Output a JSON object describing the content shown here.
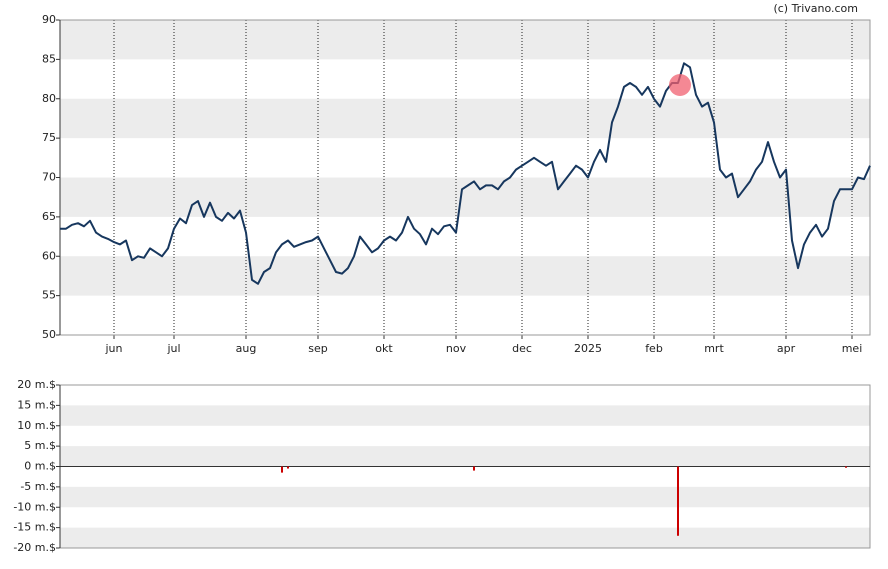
{
  "chart_data": [
    {
      "type": "line",
      "title": "(c) Trivano.com",
      "color": "#17375e",
      "categories": [
        null,
        null,
        null,
        null,
        null,
        null,
        null,
        null,
        null,
        "jun",
        null,
        null,
        null,
        null,
        null,
        null,
        null,
        null,
        null,
        "jul",
        null,
        null,
        null,
        null,
        null,
        null,
        null,
        null,
        null,
        null,
        null,
        "aug",
        null,
        null,
        null,
        null,
        null,
        null,
        null,
        null,
        null,
        null,
        null,
        "sep",
        null,
        null,
        null,
        null,
        null,
        null,
        null,
        null,
        null,
        null,
        "okt",
        null,
        null,
        null,
        null,
        null,
        null,
        null,
        null,
        null,
        null,
        null,
        "nov",
        null,
        null,
        null,
        null,
        null,
        null,
        null,
        null,
        null,
        null,
        "dec",
        null,
        null,
        null,
        null,
        null,
        null,
        null,
        null,
        null,
        null,
        "2025",
        null,
        null,
        null,
        null,
        null,
        null,
        null,
        null,
        null,
        null,
        "feb",
        null,
        null,
        null,
        null,
        null,
        null,
        null,
        null,
        null,
        "mrt",
        null,
        null,
        null,
        null,
        null,
        null,
        null,
        null,
        null,
        null,
        null,
        "apr",
        null,
        null,
        null,
        null,
        null,
        null,
        null,
        null,
        null,
        null,
        "mei",
        null,
        null,
        null
      ],
      "values": [
        63.5,
        63.5,
        64,
        64.2,
        63.8,
        64.5,
        63,
        62.5,
        62.2,
        61.8,
        61.5,
        62,
        59.5,
        60,
        59.8,
        61,
        60.5,
        60,
        61,
        63.5,
        64.8,
        64.2,
        66.5,
        67,
        65,
        66.8,
        65,
        64.5,
        65.5,
        64.8,
        65.8,
        63,
        57,
        56.5,
        58,
        58.5,
        60.5,
        61.5,
        62,
        61.2,
        61.5,
        61.8,
        62,
        62.5,
        61,
        59.5,
        58,
        57.8,
        58.5,
        60,
        62.5,
        61.5,
        60.5,
        61,
        62,
        62.5,
        62,
        63,
        65,
        63.5,
        62.8,
        61.5,
        63.5,
        62.8,
        63.8,
        64,
        63,
        68.5,
        69,
        69.5,
        68.5,
        69,
        69,
        68.5,
        69.5,
        70,
        71,
        71.5,
        72,
        72.5,
        72,
        71.5,
        72,
        68.5,
        69.5,
        70.5,
        71.5,
        71,
        70,
        72,
        73.5,
        72,
        77,
        79,
        81.5,
        82,
        81.5,
        80.5,
        81.5,
        80,
        79,
        81,
        82,
        82,
        84.5,
        84,
        80.5,
        79,
        79.5,
        77,
        71,
        70,
        70.5,
        67.5,
        68.5,
        69.5,
        71,
        72,
        74.5,
        72,
        70,
        71,
        62,
        58.5,
        61.5,
        63,
        64,
        62.5,
        63.5,
        67,
        68.5,
        68.5,
        68.5,
        70,
        69.8,
        71.5
      ],
      "ylim": [
        50,
        90
      ],
      "yticks": [
        50,
        55,
        60,
        65,
        70,
        75,
        80,
        85,
        90
      ],
      "grid": true
    },
    {
      "type": "bar",
      "color": "#cc0000",
      "values": [
        null,
        null,
        null,
        null,
        null,
        null,
        null,
        null,
        null,
        null,
        null,
        null,
        null,
        null,
        null,
        null,
        null,
        null,
        null,
        null,
        null,
        null,
        null,
        null,
        null,
        null,
        null,
        null,
        null,
        null,
        null,
        null,
        null,
        null,
        null,
        null,
        null,
        -1.5,
        -0.5,
        null,
        null,
        null,
        null,
        null,
        null,
        null,
        null,
        null,
        null,
        null,
        null,
        null,
        null,
        null,
        null,
        null,
        null,
        null,
        null,
        null,
        null,
        null,
        null,
        null,
        null,
        null,
        null,
        null,
        null,
        -1,
        null,
        null,
        null,
        null,
        null,
        null,
        null,
        null,
        null,
        null,
        null,
        null,
        null,
        null,
        null,
        null,
        null,
        null,
        null,
        null,
        null,
        null,
        null,
        null,
        null,
        null,
        null,
        null,
        null,
        null,
        null,
        null,
        null,
        -17,
        null,
        null,
        null,
        null,
        null,
        null,
        null,
        null,
        null,
        null,
        null,
        null,
        null,
        null,
        null,
        null,
        null,
        null,
        null,
        null,
        null,
        null,
        null,
        null,
        null,
        null,
        null,
        -0.3,
        null,
        null,
        null,
        null
      ],
      "ylim": [
        -20,
        20
      ],
      "yticks": [
        {
          "value": -20,
          "label": "-20 m.$"
        },
        {
          "value": -15,
          "label": "-15 m.$"
        },
        {
          "value": -10,
          "label": "-10 m.$"
        },
        {
          "value": -5,
          "label": "-5 m.$"
        },
        {
          "value": 0,
          "label": "0 m.$"
        },
        {
          "value": 5,
          "label": "5 m.$"
        },
        {
          "value": 10,
          "label": "10 m.$"
        },
        {
          "value": 15,
          "label": "15 m.$"
        },
        {
          "value": 20,
          "label": "20 m.$"
        }
      ],
      "grid": true
    }
  ]
}
